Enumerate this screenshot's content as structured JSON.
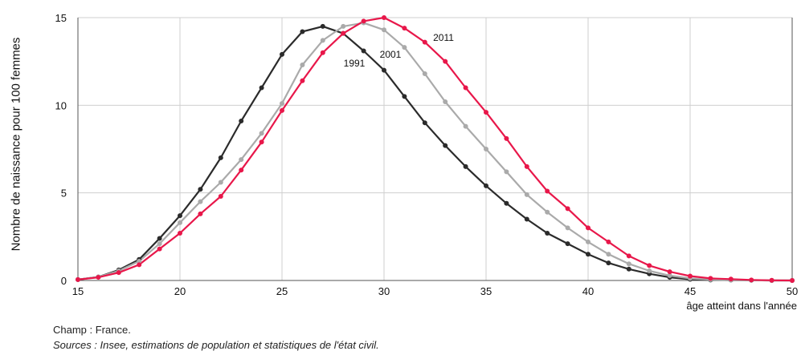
{
  "chart_data": {
    "type": "line",
    "title": "",
    "xlabel": "âge atteint dans l'année",
    "ylabel": "Nombre de naissance pour 100 femmes",
    "xlim": [
      15,
      50
    ],
    "ylim": [
      0,
      15
    ],
    "x_ticks": [
      15,
      20,
      25,
      30,
      35,
      40,
      45,
      50
    ],
    "y_ticks": [
      0,
      5,
      10,
      15
    ],
    "grid": true,
    "x": [
      15,
      16,
      17,
      18,
      19,
      20,
      21,
      22,
      23,
      24,
      25,
      26,
      27,
      28,
      29,
      30,
      31,
      32,
      33,
      34,
      35,
      36,
      37,
      38,
      39,
      40,
      41,
      42,
      43,
      44,
      45,
      46,
      47,
      48,
      49,
      50
    ],
    "series": [
      {
        "name": "1991",
        "color": "#2b2b2b",
        "values": [
          0.05,
          0.2,
          0.6,
          1.2,
          2.4,
          3.7,
          5.2,
          7.0,
          9.1,
          11.0,
          12.9,
          14.2,
          14.5,
          14.1,
          13.1,
          12.0,
          10.5,
          9.0,
          7.7,
          6.5,
          5.4,
          4.4,
          3.5,
          2.7,
          2.1,
          1.5,
          1.0,
          0.65,
          0.38,
          0.18,
          0.07,
          0.03,
          0.02,
          0.01,
          0.0,
          0.0
        ]
      },
      {
        "name": "2001",
        "color": "#aaaaaa",
        "values": [
          0.05,
          0.2,
          0.55,
          1.1,
          2.1,
          3.3,
          4.5,
          5.6,
          6.9,
          8.4,
          10.1,
          12.3,
          13.7,
          14.5,
          14.7,
          14.3,
          13.3,
          11.8,
          10.2,
          8.8,
          7.5,
          6.2,
          4.9,
          3.9,
          3.0,
          2.2,
          1.5,
          0.95,
          0.55,
          0.28,
          0.12,
          0.05,
          0.02,
          0.01,
          0.0,
          0.0
        ]
      },
      {
        "name": "2011",
        "color": "#e8174a",
        "values": [
          0.05,
          0.18,
          0.45,
          0.9,
          1.8,
          2.7,
          3.8,
          4.8,
          6.3,
          7.9,
          9.7,
          11.4,
          13.0,
          14.1,
          14.8,
          15.0,
          14.4,
          13.6,
          12.5,
          11.0,
          9.6,
          8.1,
          6.5,
          5.1,
          4.1,
          3.0,
          2.2,
          1.4,
          0.85,
          0.5,
          0.25,
          0.12,
          0.08,
          0.03,
          0.01,
          0.0
        ]
      }
    ]
  },
  "notes": {
    "champ": "Champ : France.",
    "sources": "Sources : Insee, estimations de population et statistiques de l'état civil."
  }
}
